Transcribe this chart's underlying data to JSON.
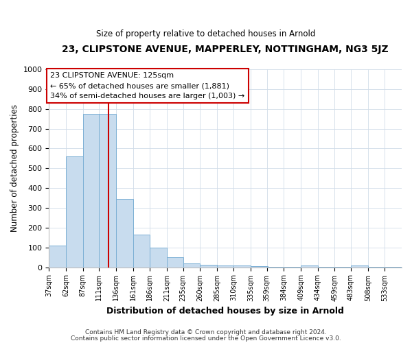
{
  "title1": "23, CLIPSTONE AVENUE, MAPPERLEY, NOTTINGHAM, NG3 5JZ",
  "title2": "Size of property relative to detached houses in Arnold",
  "xlabel": "Distribution of detached houses by size in Arnold",
  "ylabel": "Number of detached properties",
  "bar_color": "#c8dcee",
  "bar_edge_color": "#7bafd4",
  "bins": [
    37,
    62,
    87,
    111,
    136,
    161,
    186,
    211,
    235,
    260,
    285,
    310,
    335,
    359,
    384,
    409,
    434,
    459,
    483,
    508,
    533
  ],
  "heights": [
    110,
    560,
    775,
    775,
    345,
    165,
    100,
    52,
    20,
    13,
    10,
    8,
    5,
    3,
    2,
    8,
    3,
    3,
    8,
    2,
    2
  ],
  "red_line_x": 125,
  "annotation_title": "23 CLIPSTONE AVENUE: 125sqm",
  "annotation_line2": "← 65% of detached houses are smaller (1,881)",
  "annotation_line3": "34% of semi-detached houses are larger (1,003) →",
  "annotation_box_color": "#ffffff",
  "annotation_box_edge": "#cc0000",
  "red_line_color": "#cc0000",
  "footer1": "Contains HM Land Registry data © Crown copyright and database right 2024.",
  "footer2": "Contains public sector information licensed under the Open Government Licence v3.0.",
  "ylim": [
    0,
    1000
  ],
  "yticks": [
    0,
    100,
    200,
    300,
    400,
    500,
    600,
    700,
    800,
    900,
    1000
  ],
  "tick_labels": [
    "37sqm",
    "62sqm",
    "87sqm",
    "111sqm",
    "136sqm",
    "161sqm",
    "186sqm",
    "211sqm",
    "235sqm",
    "260sqm",
    "285sqm",
    "310sqm",
    "335sqm",
    "359sqm",
    "384sqm",
    "409sqm",
    "434sqm",
    "459sqm",
    "483sqm",
    "508sqm",
    "533sqm"
  ],
  "bin_width": 25
}
